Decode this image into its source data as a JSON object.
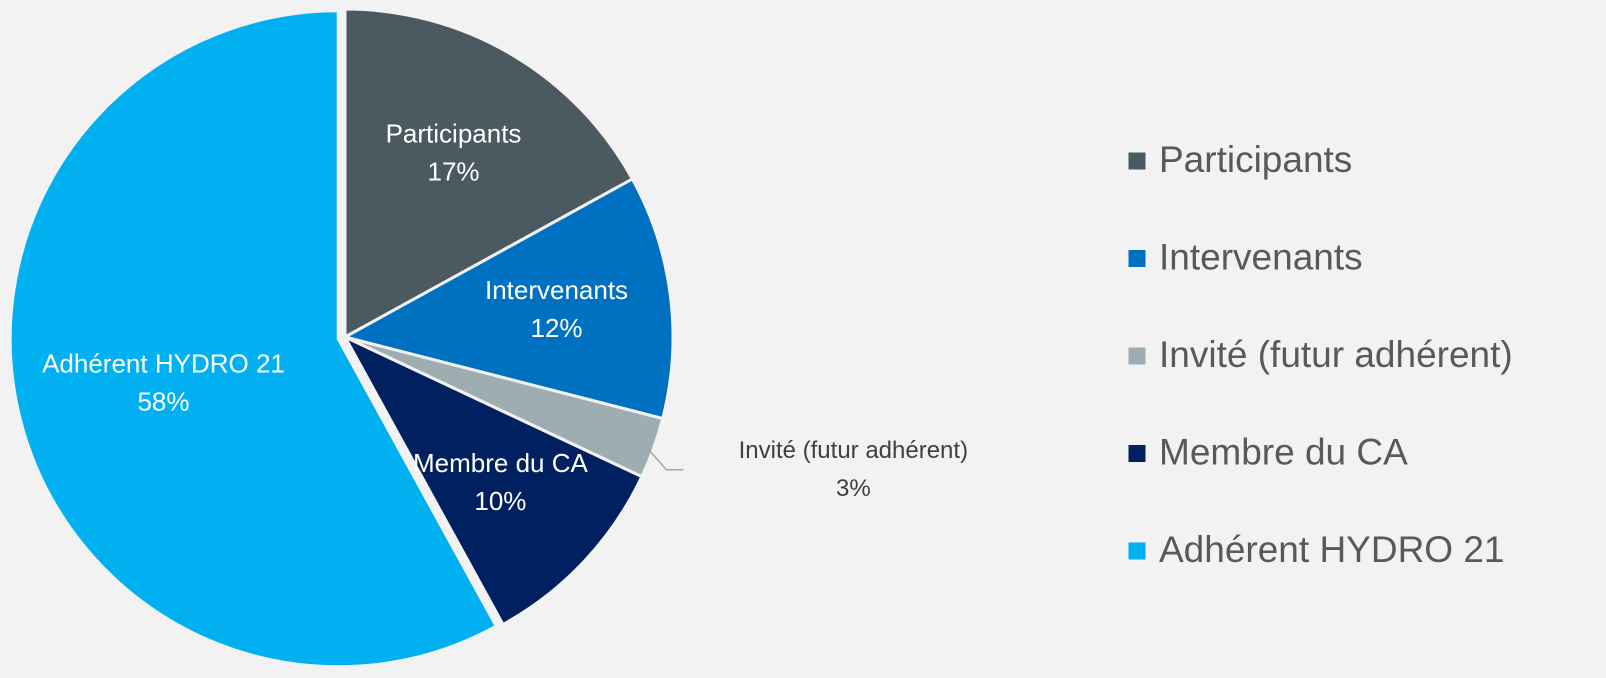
{
  "chart_data": {
    "type": "pie",
    "categories": [
      "Participants",
      "Intervenants",
      "Invité (futur adhérent)",
      "Membre du CA",
      "Adhérent HYDRO 21"
    ],
    "values": [
      17,
      12,
      3,
      10,
      58
    ],
    "value_labels": [
      "17%",
      "12%",
      "3%",
      "10%",
      "58%"
    ],
    "colors": [
      "#4a5a60",
      "#0070c0",
      "#9eadb2",
      "#002060",
      "#00b0f0"
    ],
    "legend": "right"
  }
}
